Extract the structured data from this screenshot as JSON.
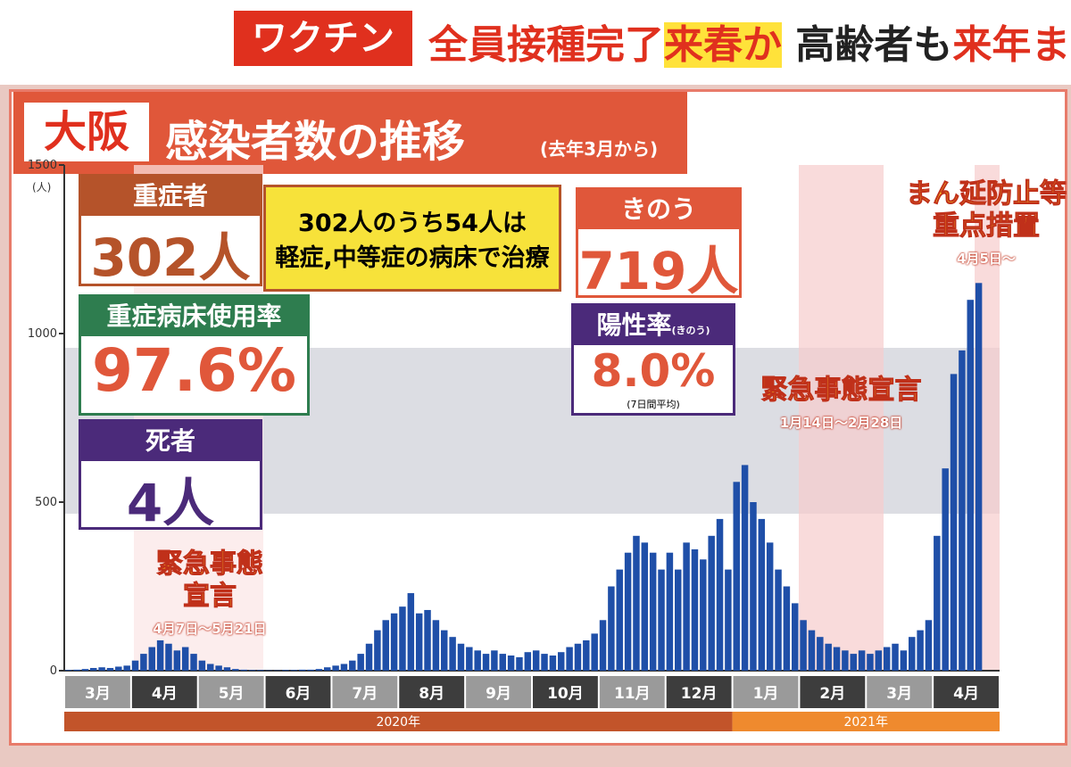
{
  "header": {
    "tag": "ワクチン",
    "parts": [
      "全員接種完了",
      "来春か",
      "高齢者も",
      "来年ま"
    ]
  },
  "title": {
    "place": "大阪",
    "main": "感染者数の推移",
    "note": "(去年3月から)"
  },
  "panels": {
    "severe": {
      "label": "重症者",
      "value": "302人"
    },
    "note": {
      "lines": [
        "302人のうち54人は",
        "軽症,中等症の病床で治療"
      ]
    },
    "bed_rate": {
      "label": "重症病床使用率",
      "value": "97.6%"
    },
    "deaths": {
      "label": "死者",
      "value": "4人"
    },
    "yesterday": {
      "label": "きのう",
      "value": "719人"
    },
    "positivity": {
      "label": "陽性率",
      "sub": "(きのう)",
      "value": "8.0%",
      "note": "(7日間平均)"
    }
  },
  "chart_data": {
    "type": "bar",
    "y_unit": "(人)",
    "categories": [
      "3月",
      "4月",
      "5月",
      "6月",
      "7月",
      "8月",
      "9月",
      "10月",
      "11月",
      "12月",
      "1月",
      "2月",
      "3月",
      "4月"
    ],
    "years": [
      "2020年",
      "2021年"
    ],
    "values": [
      [
        2,
        3,
        5,
        8,
        10,
        8,
        12,
        15
      ],
      [
        30,
        50,
        70,
        90,
        80,
        60,
        70,
        50
      ],
      [
        30,
        20,
        15,
        10,
        5,
        3,
        2,
        2
      ],
      [
        1,
        1,
        2,
        2,
        3,
        3,
        5,
        10
      ],
      [
        15,
        20,
        30,
        50,
        80,
        120,
        150,
        170
      ],
      [
        190,
        230,
        170,
        180,
        150,
        120,
        100,
        80
      ],
      [
        70,
        60,
        50,
        60,
        50,
        45,
        40,
        55
      ],
      [
        60,
        50,
        45,
        55,
        70,
        80,
        90,
        110
      ],
      [
        150,
        250,
        300,
        350,
        400,
        380,
        350,
        300
      ],
      [
        350,
        300,
        380,
        360,
        330,
        400,
        450,
        300
      ],
      [
        560,
        610,
        500,
        450,
        380,
        300,
        250,
        200
      ],
      [
        150,
        120,
        100,
        80,
        70,
        60,
        50,
        60
      ],
      [
        50,
        60,
        70,
        80,
        60,
        100,
        120,
        150
      ],
      [
        400,
        600,
        880,
        950,
        1100,
        1150
      ]
    ],
    "color": "#1f4fa8",
    "ylim": [
      0,
      1500
    ],
    "yticks": [
      0,
      500,
      1000,
      1500
    ],
    "grid": false,
    "annotations": [
      {
        "lines": [
          "緊急事態",
          "宣言"
        ],
        "period": "4月7日～5月21日"
      },
      {
        "lines": [
          "緊急事態宣言"
        ],
        "period": "1月14日～2月28日"
      },
      {
        "lines": [
          "まん延防止等",
          "重点措置"
        ],
        "period": "4月5日～"
      }
    ]
  }
}
